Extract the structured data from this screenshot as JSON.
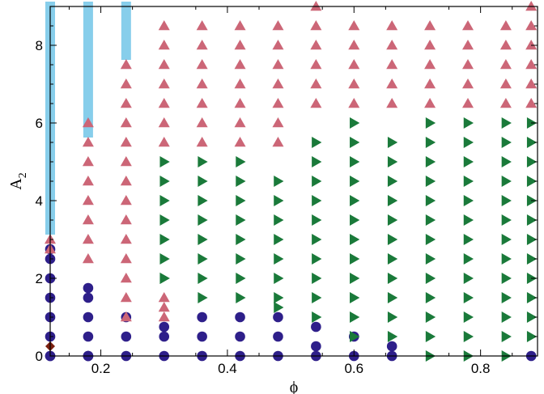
{
  "chart_data": {
    "type": "scatter",
    "title": "",
    "xlabel": "ϕ",
    "ylabel": "A",
    "ylabel_subscript": "2",
    "xlim": [
      0.12,
      0.89
    ],
    "ylim": [
      0,
      9
    ],
    "xticks": [
      0.2,
      0.4,
      0.6,
      0.8
    ],
    "xtick_labels": [
      "0.2",
      "0.4",
      "0.6",
      "0.8"
    ],
    "yticks": [
      0,
      2,
      4,
      6,
      8
    ],
    "ytick_labels": [
      "0",
      "2",
      "4",
      "6",
      "8"
    ],
    "grid": false,
    "legend": "none",
    "series": [
      {
        "marker": "diamond",
        "color": "#7a1f0f",
        "x": [
          0.12,
          0.12
        ],
        "y": [
          0,
          0.25
        ]
      },
      {
        "marker": "circle",
        "color": "#2e1f8a",
        "x": [
          0.12,
          0.12,
          0.12,
          0.12,
          0.12,
          0.12,
          0.12,
          0.12,
          0.18,
          0.18,
          0.18,
          0.18,
          0.18,
          0.18,
          0.18,
          0.24,
          0.24,
          0.24,
          0.3,
          0.3,
          0.3,
          0.36,
          0.36,
          0.36,
          0.42,
          0.42,
          0.42,
          0.48,
          0.48,
          0.48,
          0.54,
          0.54,
          0.54,
          0.6,
          0.6,
          0.66,
          0.66,
          0.88
        ],
        "y": [
          0.5,
          1.0,
          1.5,
          2.0,
          2.5,
          2.75,
          0,
          0,
          0,
          0.5,
          1.0,
          1.5,
          1.75,
          0,
          0,
          0,
          0.5,
          1.0,
          0,
          0.5,
          0.75,
          0,
          0.5,
          1.0,
          0,
          0.5,
          1.0,
          0,
          0.5,
          1.0,
          0,
          0.25,
          0.75,
          0,
          0.5,
          0,
          0.25,
          0
        ]
      },
      {
        "marker": "square",
        "color": "#87ceeb",
        "x": [
          0.12,
          0.12,
          0.12,
          0.12,
          0.12,
          0.12,
          0.12,
          0.12,
          0.12,
          0.12,
          0.12,
          0.12,
          0.12,
          0.12,
          0.12,
          0.12,
          0.12,
          0.12,
          0.12,
          0.12,
          0.12,
          0.12,
          0.12,
          0.12,
          0.18,
          0.18,
          0.18,
          0.18,
          0.18,
          0.18,
          0.18,
          0.18,
          0.18,
          0.18,
          0.18,
          0.18,
          0.18,
          0.18,
          0.24,
          0.24,
          0.24,
          0.24,
          0.24,
          0.24
        ],
        "y": [
          3.25,
          3.5,
          3.75,
          4.0,
          4.25,
          4.5,
          4.75,
          5.0,
          5.25,
          5.5,
          5.75,
          6.0,
          6.25,
          6.5,
          6.75,
          7.0,
          7.25,
          7.5,
          7.75,
          8.0,
          8.25,
          8.5,
          8.75,
          9.0,
          5.75,
          6.0,
          6.25,
          6.5,
          6.75,
          7.0,
          7.25,
          7.5,
          7.75,
          8.0,
          8.25,
          8.5,
          8.75,
          9.0,
          7.75,
          8.0,
          8.25,
          8.5,
          8.75,
          9.0
        ]
      },
      {
        "marker": "triangle-up",
        "color": "#cc6677",
        "x": [
          0.12,
          0.12,
          0.18,
          0.18,
          0.18,
          0.18,
          0.18,
          0.18,
          0.18,
          0.18,
          0.24,
          0.24,
          0.24,
          0.24,
          0.24,
          0.24,
          0.24,
          0.24,
          0.24,
          0.24,
          0.24,
          0.24,
          0.24,
          0.24,
          0.3,
          0.3,
          0.3,
          0.3,
          0.3,
          0.3,
          0.3,
          0.3,
          0.3,
          0.3,
          0.36,
          0.36,
          0.36,
          0.36,
          0.36,
          0.36,
          0.36,
          0.42,
          0.42,
          0.42,
          0.42,
          0.42,
          0.42,
          0.42,
          0.48,
          0.48,
          0.48,
          0.48,
          0.48,
          0.48,
          0.48,
          0.54,
          0.54,
          0.54,
          0.54,
          0.54,
          0.54,
          0.6,
          0.6,
          0.6,
          0.6,
          0.6,
          0.66,
          0.66,
          0.66,
          0.66,
          0.66,
          0.72,
          0.72,
          0.72,
          0.72,
          0.72,
          0.78,
          0.78,
          0.78,
          0.78,
          0.78,
          0.84,
          0.84,
          0.84,
          0.84,
          0.84,
          0.88,
          0.88,
          0.88,
          0.88,
          0.88,
          0.88
        ],
        "y": [
          2.75,
          3.0,
          2.5,
          3.0,
          3.5,
          4.0,
          4.5,
          5.0,
          5.5,
          6.0,
          2.5,
          3.0,
          3.5,
          4.0,
          4.5,
          5.0,
          5.5,
          6.0,
          6.5,
          7.0,
          7.5,
          2.0,
          1.5,
          1.0,
          1.0,
          1.25,
          1.5,
          5.5,
          6.0,
          6.5,
          7.0,
          7.5,
          8.0,
          8.5,
          5.5,
          6.0,
          6.5,
          7.0,
          7.5,
          8.0,
          8.5,
          5.5,
          6.0,
          6.5,
          7.0,
          7.5,
          8.0,
          8.5,
          5.5,
          6.0,
          6.5,
          7.0,
          7.5,
          8.0,
          8.5,
          6.5,
          7.0,
          7.5,
          8.0,
          8.5,
          9.0,
          6.5,
          7.0,
          7.5,
          8.0,
          8.5,
          6.5,
          7.0,
          7.5,
          8.0,
          8.5,
          6.5,
          7.0,
          7.5,
          8.0,
          8.5,
          6.5,
          7.0,
          7.5,
          8.0,
          8.5,
          6.5,
          7.0,
          7.5,
          8.0,
          8.5,
          6.5,
          7.0,
          7.5,
          8.0,
          8.5,
          9.0
        ]
      },
      {
        "marker": "triangle-right",
        "color": "#1a7a3a",
        "x": [
          0.3,
          0.3,
          0.3,
          0.3,
          0.3,
          0.3,
          0.3,
          0.3,
          0.36,
          0.36,
          0.36,
          0.36,
          0.36,
          0.36,
          0.36,
          0.36,
          0.42,
          0.42,
          0.42,
          0.42,
          0.42,
          0.42,
          0.42,
          0.42,
          0.48,
          0.48,
          0.48,
          0.48,
          0.48,
          0.48,
          0.48,
          0.48,
          0.54,
          0.54,
          0.54,
          0.54,
          0.54,
          0.54,
          0.54,
          0.54,
          0.54,
          0.54,
          0.6,
          0.6,
          0.6,
          0.6,
          0.6,
          0.6,
          0.6,
          0.6,
          0.6,
          0.6,
          0.6,
          0.6,
          0.66,
          0.66,
          0.66,
          0.66,
          0.66,
          0.66,
          0.66,
          0.66,
          0.66,
          0.66,
          0.66,
          0.72,
          0.72,
          0.72,
          0.72,
          0.72,
          0.72,
          0.72,
          0.72,
          0.72,
          0.72,
          0.72,
          0.72,
          0.72,
          0.78,
          0.78,
          0.78,
          0.78,
          0.78,
          0.78,
          0.78,
          0.78,
          0.78,
          0.78,
          0.78,
          0.78,
          0.78,
          0.84,
          0.84,
          0.84,
          0.84,
          0.84,
          0.84,
          0.84,
          0.84,
          0.84,
          0.84,
          0.84,
          0.84,
          0.84,
          0.88,
          0.88,
          0.88,
          0.88,
          0.88,
          0.88,
          0.88,
          0.88,
          0.88,
          0.88,
          0.88,
          0.88
        ],
        "y": [
          2.5,
          3.0,
          3.5,
          4.0,
          4.5,
          5.0,
          2.0,
          2.0,
          1.5,
          2.0,
          2.5,
          3.0,
          3.5,
          4.0,
          4.5,
          5.0,
          1.5,
          2.0,
          2.5,
          3.0,
          3.5,
          4.0,
          4.5,
          5.0,
          1.25,
          1.5,
          2.0,
          2.5,
          3.0,
          3.5,
          4.0,
          4.5,
          1.0,
          1.5,
          2.0,
          2.5,
          3.0,
          3.5,
          4.0,
          4.5,
          5.0,
          5.5,
          1.0,
          1.5,
          2.0,
          2.5,
          3.0,
          3.5,
          4.0,
          4.5,
          5.0,
          5.5,
          6.0,
          0.5,
          0.5,
          1.0,
          1.5,
          2.0,
          2.5,
          3.0,
          3.5,
          4.0,
          4.5,
          5.0,
          5.5,
          0,
          0.5,
          1.0,
          1.5,
          2.0,
          2.5,
          3.0,
          3.5,
          4.0,
          4.5,
          5.0,
          5.5,
          6.0,
          0,
          0.5,
          1.0,
          1.5,
          2.0,
          2.5,
          3.0,
          3.5,
          4.0,
          4.5,
          5.0,
          5.5,
          6.0,
          0,
          0.5,
          1.0,
          1.5,
          2.0,
          2.5,
          3.0,
          3.5,
          4.0,
          4.5,
          5.0,
          5.5,
          6.0,
          0.5,
          1.0,
          1.5,
          2.0,
          2.5,
          3.0,
          3.5,
          4.0,
          4.5,
          5.0,
          5.5,
          6.0
        ]
      }
    ]
  }
}
